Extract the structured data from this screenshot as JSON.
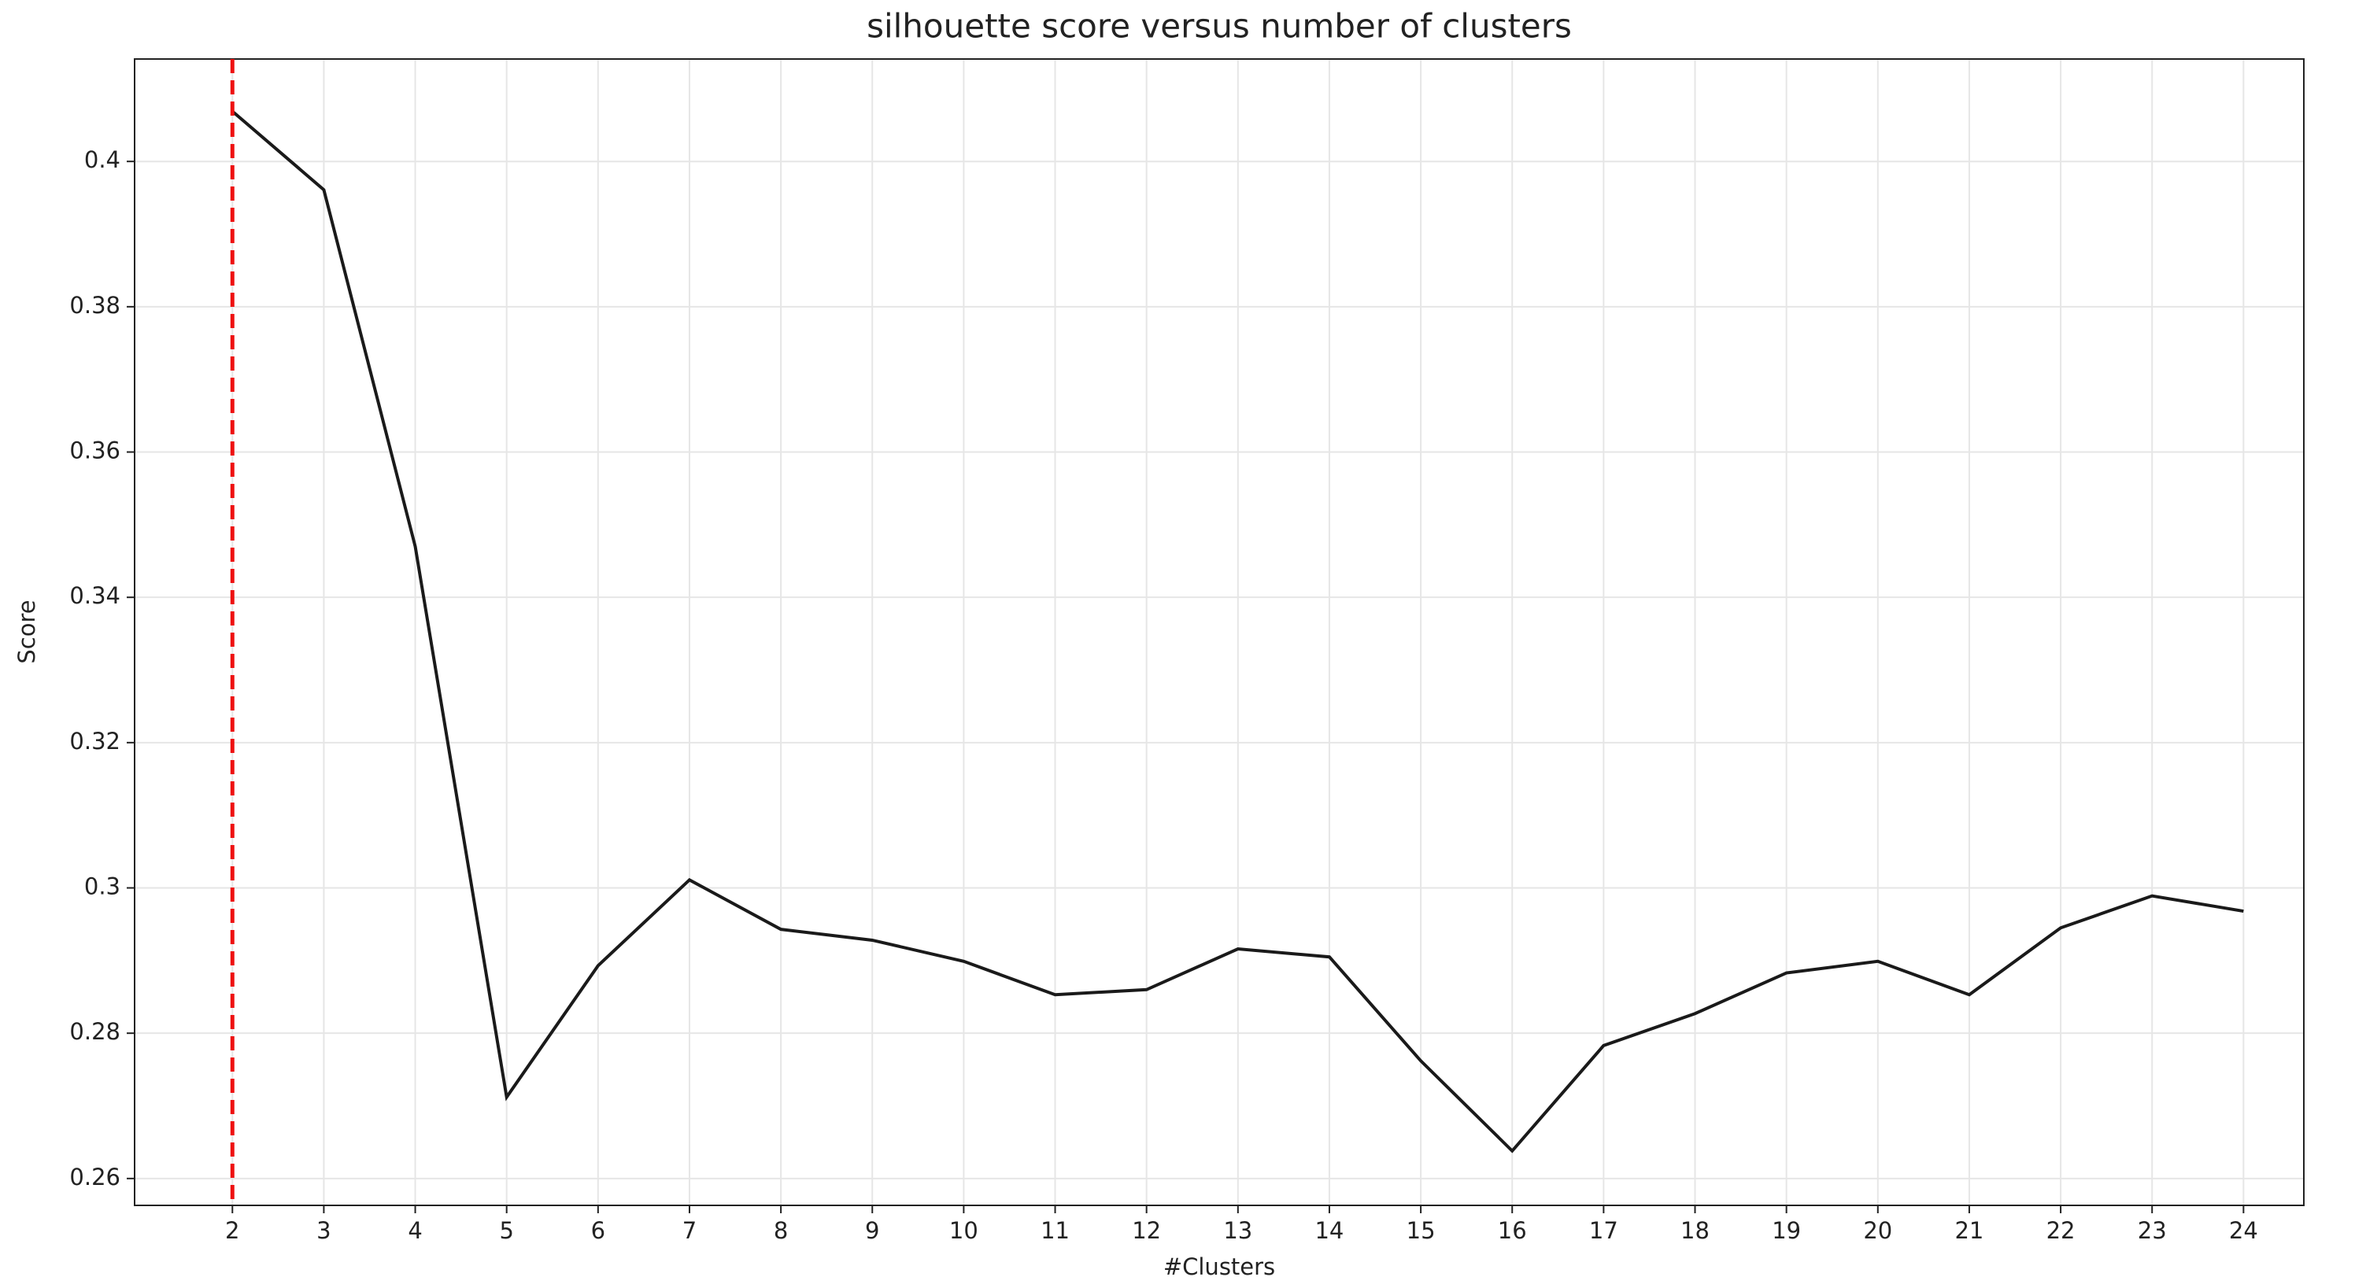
{
  "chart_data": {
    "type": "line",
    "title": "silhouette score versus number of clusters",
    "x_label": "#Clusters",
    "y_label": "Score",
    "x": [
      2,
      3,
      4,
      5,
      6,
      7,
      8,
      9,
      10,
      11,
      12,
      13,
      14,
      15,
      16,
      17,
      18,
      19,
      20,
      21,
      22,
      23,
      24
    ],
    "series": [
      {
        "color": "#1a1a1a",
        "values": [
          0.4069,
          0.3961,
          0.347,
          0.2712,
          0.2893,
          0.3011,
          0.2943,
          0.2928,
          0.2899,
          0.2853,
          0.286,
          0.2916,
          0.2905,
          0.2762,
          0.2638,
          0.2783,
          0.2827,
          0.2883,
          0.2899,
          0.2853,
          0.2945,
          0.2989,
          0.2968
        ]
      }
    ],
    "xlim": [
      0.93,
      24.66
    ],
    "ylim": [
      0.2563,
      0.4141
    ],
    "xticks": [
      2,
      3,
      4,
      5,
      6,
      7,
      8,
      9,
      10,
      11,
      12,
      13,
      14,
      15,
      16,
      17,
      18,
      19,
      20,
      21,
      22,
      23,
      24
    ],
    "yticks": [
      0.26,
      0.28,
      0.3,
      0.32,
      0.34,
      0.36,
      0.38,
      0.4
    ],
    "grid": true,
    "vline": {
      "x": 2,
      "color": "#ee1111",
      "dashed": true
    }
  }
}
